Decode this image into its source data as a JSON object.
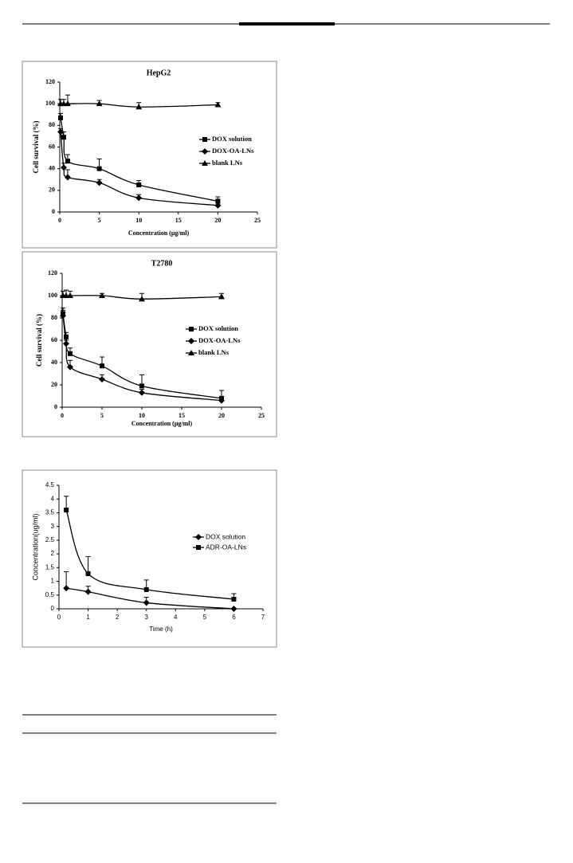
{
  "chart_data": [
    {
      "type": "line",
      "title": "HepG2",
      "xlabel": "Concentration (μg/ml)",
      "ylabel": "Cell survival (%)",
      "x": [
        0.1,
        0.5,
        1,
        5,
        10,
        20
      ],
      "xlim": [
        0,
        25
      ],
      "xticks": [
        0,
        5,
        10,
        15,
        20,
        25
      ],
      "ylim": [
        0,
        120
      ],
      "yticks": [
        0,
        20,
        40,
        60,
        80,
        100,
        120
      ],
      "legend": "right",
      "series": [
        {
          "name": "DOX solution",
          "color": "#000000",
          "marker": "square",
          "values": [
            87,
            69,
            47,
            40,
            25,
            10
          ],
          "errors": [
            4,
            5,
            6,
            9,
            4,
            4
          ]
        },
        {
          "name": "DOX-OA-LNs",
          "color": "#000000",
          "marker": "diamond",
          "values": [
            74,
            41,
            32,
            27,
            13,
            6
          ],
          "errors": [
            3,
            4,
            7,
            3,
            3,
            2
          ]
        },
        {
          "name": "blank LNs",
          "color": "#000000",
          "marker": "triangle",
          "values": [
            100,
            100,
            100,
            100,
            97,
            99
          ],
          "errors": [
            4,
            4,
            8,
            3,
            4,
            2
          ]
        }
      ]
    },
    {
      "type": "line",
      "title": "T2780",
      "xlabel": "Concentration (μg/ml)",
      "ylabel": "Cell survival (%)",
      "x": [
        0.1,
        0.5,
        1,
        5,
        10,
        20
      ],
      "xlim": [
        0,
        25
      ],
      "xticks": [
        0,
        5,
        10,
        15,
        20,
        25
      ],
      "ylim": [
        0,
        120
      ],
      "yticks": [
        0,
        20,
        40,
        60,
        80,
        100,
        120
      ],
      "legend": "right",
      "series": [
        {
          "name": "DOX solution",
          "color": "#000000",
          "marker": "square",
          "values": [
            84,
            63,
            48,
            37,
            19,
            8
          ],
          "errors": [
            5,
            4,
            5,
            8,
            10,
            7
          ]
        },
        {
          "name": "DOX-OA-LNs",
          "color": "#000000",
          "marker": "diamond",
          "values": [
            82,
            57,
            36,
            25,
            13,
            6
          ],
          "errors": [
            5,
            3,
            6,
            4,
            3,
            2
          ]
        },
        {
          "name": "blank LNs",
          "color": "#000000",
          "marker": "triangle",
          "values": [
            100,
            100,
            100,
            100,
            97,
            99
          ],
          "errors": [
            4,
            5,
            4,
            2,
            5,
            3
          ]
        }
      ]
    },
    {
      "type": "line",
      "xlabel": "Time (h)",
      "ylabel": "Concentration(ug/ml)",
      "x": [
        0.25,
        1,
        3,
        6
      ],
      "xlim": [
        0,
        7
      ],
      "xticks": [
        0,
        1,
        2,
        3,
        4,
        5,
        6,
        7
      ],
      "ylim": [
        0,
        4.5
      ],
      "yticks": [
        0,
        0.5,
        1,
        1.5,
        2,
        2.5,
        3,
        3.5,
        4,
        4.5
      ],
      "legend": "right",
      "series": [
        {
          "name": "DOX solution",
          "color": "#000000",
          "marker": "diamond",
          "values": [
            0.75,
            0.62,
            0.22,
            0
          ],
          "errors": [
            0.6,
            0.2,
            0.2,
            0
          ]
        },
        {
          "name": "ADR-OA-LNs",
          "color": "#000000",
          "marker": "square",
          "values": [
            3.6,
            1.28,
            0.7,
            0.35
          ],
          "errors": [
            0.5,
            0.62,
            0.35,
            0.2
          ]
        }
      ]
    }
  ]
}
